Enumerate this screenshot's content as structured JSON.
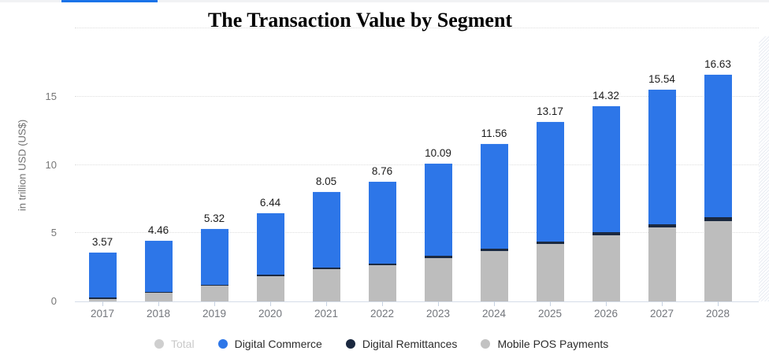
{
  "header": {
    "title": "The Transaction Value by Segment"
  },
  "colors": {
    "accent_tab": "#1a73e8",
    "digital_commerce": "#2d76e8",
    "digital_remittances": "#1b2940",
    "mobile_pos": "#bdbdbd",
    "total_inactive": "#cfcfcf",
    "axis_text": "#767676",
    "value_text": "#1c1c1c"
  },
  "chart_data": {
    "type": "bar",
    "stacked": true,
    "title": "The Transaction Value by Segment",
    "xlabel": "",
    "ylabel": "in trillion USD (US$)",
    "ylim": [
      0,
      20.4
    ],
    "yticks": [
      0,
      5,
      10,
      15
    ],
    "grid": "horizontal-dotted",
    "legend_position": "bottom",
    "categories": [
      "2017",
      "2018",
      "2019",
      "2020",
      "2021",
      "2022",
      "2023",
      "2024",
      "2025",
      "2026",
      "2027",
      "2028"
    ],
    "series": [
      {
        "name": "Mobile POS Payments",
        "color": "#bdbdbd",
        "values": [
          0.2,
          0.62,
          1.13,
          1.85,
          2.34,
          2.63,
          3.2,
          3.68,
          4.2,
          4.85,
          5.43,
          5.9
        ]
      },
      {
        "name": "Digital Remittances",
        "color": "#1b2940",
        "values": [
          0.07,
          0.09,
          0.1,
          0.12,
          0.13,
          0.14,
          0.15,
          0.17,
          0.19,
          0.21,
          0.24,
          0.28
        ]
      },
      {
        "name": "Digital Commerce",
        "color": "#2d76e8",
        "values": [
          3.3,
          3.75,
          4.09,
          4.47,
          5.58,
          5.99,
          6.74,
          7.71,
          8.78,
          9.26,
          9.87,
          10.45
        ]
      }
    ],
    "totals": [
      3.57,
      4.46,
      5.32,
      6.44,
      8.05,
      8.76,
      10.09,
      11.56,
      13.17,
      14.32,
      15.54,
      16.63
    ],
    "legend": [
      {
        "label": "Total",
        "color": "#cfcfcf",
        "active": false
      },
      {
        "label": "Digital Commerce",
        "color": "#2d76e8",
        "active": true
      },
      {
        "label": "Digital Remittances",
        "color": "#1b2940",
        "active": true
      },
      {
        "label": "Mobile POS Payments",
        "color": "#c2c2c2",
        "active": true
      }
    ]
  }
}
